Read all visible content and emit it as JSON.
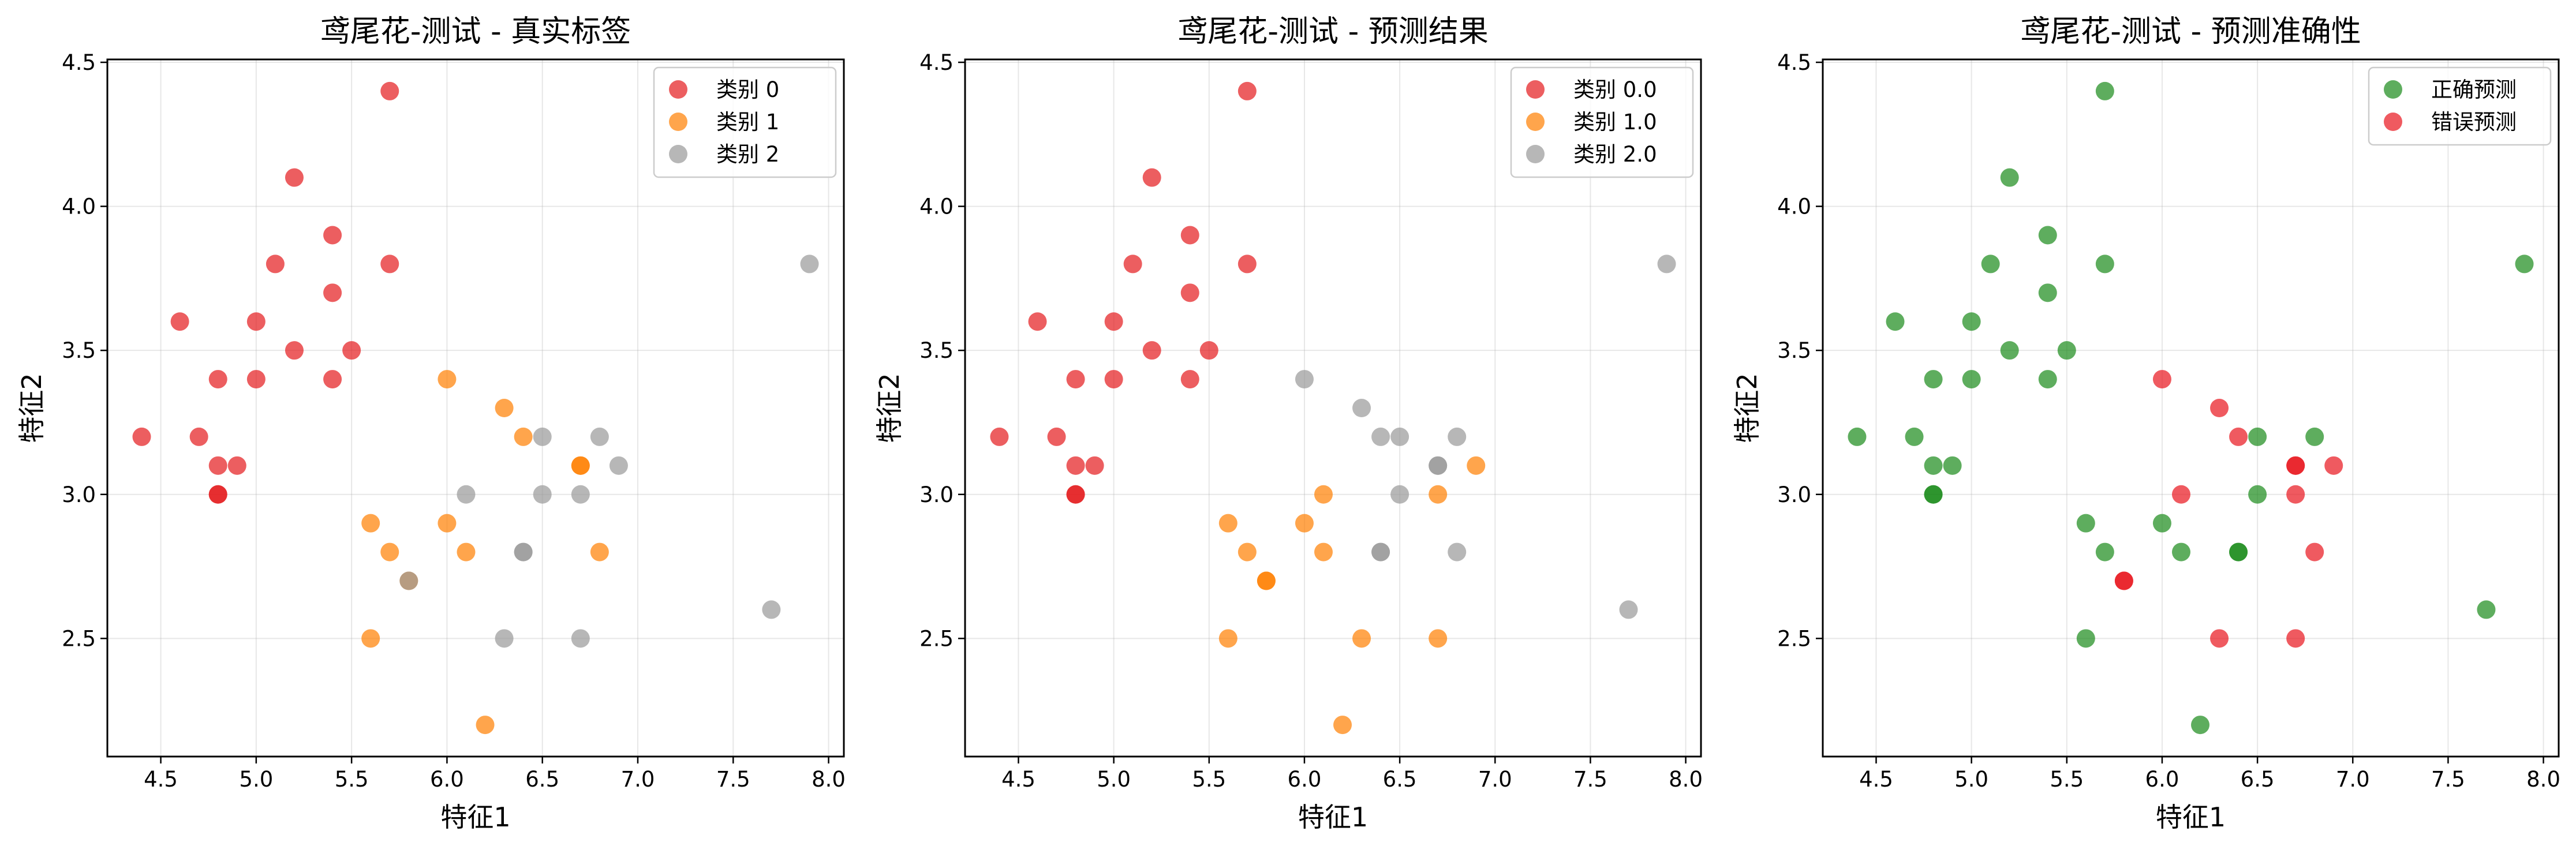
{
  "colors": {
    "class0": "#e41a1c",
    "class1": "#ff7f00",
    "class2": "#999999",
    "correct": "#1a8a1a",
    "wrong": "#e8141c"
  },
  "chart_data": [
    {
      "type": "scatter",
      "title": "鸢尾花-测试 - 真实标签",
      "xlabel": "特征1",
      "ylabel": "特征2",
      "xlim": [
        4.22,
        8.08
      ],
      "ylim": [
        2.09,
        4.51
      ],
      "xticks": [
        "4.5",
        "5.0",
        "5.5",
        "6.0",
        "6.5",
        "7.0",
        "7.5",
        "8.0"
      ],
      "yticks": [
        "2.5",
        "3.0",
        "3.5",
        "4.0",
        "4.5"
      ],
      "grid": true,
      "legend_position": "top-right",
      "series": [
        {
          "name": "类别 0",
          "color_key": "class0",
          "points": [
            [
              4.4,
              3.2
            ],
            [
              4.6,
              3.6
            ],
            [
              4.7,
              3.2
            ],
            [
              4.8,
              3.4
            ],
            [
              4.8,
              3.1
            ],
            [
              4.8,
              3.0
            ],
            [
              4.8,
              3.0
            ],
            [
              4.9,
              3.1
            ],
            [
              5.0,
              3.6
            ],
            [
              5.0,
              3.4
            ],
            [
              5.1,
              3.8
            ],
            [
              5.2,
              4.1
            ],
            [
              5.2,
              3.5
            ],
            [
              5.4,
              3.9
            ],
            [
              5.4,
              3.7
            ],
            [
              5.4,
              3.4
            ],
            [
              5.5,
              3.5
            ],
            [
              5.7,
              4.4
            ],
            [
              5.7,
              3.8
            ]
          ]
        },
        {
          "name": "类别 1",
          "color_key": "class1",
          "points": [
            [
              5.6,
              2.9
            ],
            [
              5.6,
              2.5
            ],
            [
              5.7,
              2.8
            ],
            [
              5.8,
              2.7
            ],
            [
              6.0,
              3.4
            ],
            [
              6.0,
              2.9
            ],
            [
              6.1,
              2.8
            ],
            [
              6.2,
              2.2
            ],
            [
              6.3,
              3.3
            ],
            [
              6.4,
              3.2
            ],
            [
              6.7,
              3.1
            ],
            [
              6.7,
              3.1
            ],
            [
              6.8,
              2.8
            ]
          ]
        },
        {
          "name": "类别 2",
          "color_key": "class2",
          "points": [
            [
              5.8,
              2.7
            ],
            [
              6.1,
              3.0
            ],
            [
              6.3,
              2.5
            ],
            [
              6.4,
              2.8
            ],
            [
              6.4,
              2.8
            ],
            [
              6.5,
              3.2
            ],
            [
              6.5,
              3.0
            ],
            [
              6.7,
              3.0
            ],
            [
              6.7,
              2.5
            ],
            [
              6.8,
              3.2
            ],
            [
              6.9,
              3.1
            ],
            [
              7.7,
              2.6
            ],
            [
              7.9,
              3.8
            ]
          ]
        }
      ]
    },
    {
      "type": "scatter",
      "title": "鸢尾花-测试 - 预测结果",
      "xlabel": "特征1",
      "ylabel": "特征2",
      "xlim": [
        4.22,
        8.08
      ],
      "ylim": [
        2.09,
        4.51
      ],
      "xticks": [
        "4.5",
        "5.0",
        "5.5",
        "6.0",
        "6.5",
        "7.0",
        "7.5",
        "8.0"
      ],
      "yticks": [
        "2.5",
        "3.0",
        "3.5",
        "4.0",
        "4.5"
      ],
      "grid": true,
      "legend_position": "top-right",
      "series": [
        {
          "name": "类别 0.0",
          "color_key": "class0",
          "points": [
            [
              4.4,
              3.2
            ],
            [
              4.6,
              3.6
            ],
            [
              4.7,
              3.2
            ],
            [
              4.8,
              3.4
            ],
            [
              4.8,
              3.1
            ],
            [
              4.8,
              3.0
            ],
            [
              4.8,
              3.0
            ],
            [
              4.9,
              3.1
            ],
            [
              5.0,
              3.6
            ],
            [
              5.0,
              3.4
            ],
            [
              5.1,
              3.8
            ],
            [
              5.2,
              4.1
            ],
            [
              5.2,
              3.5
            ],
            [
              5.4,
              3.9
            ],
            [
              5.4,
              3.7
            ],
            [
              5.4,
              3.4
            ],
            [
              5.5,
              3.5
            ],
            [
              5.7,
              4.4
            ],
            [
              5.7,
              3.8
            ]
          ]
        },
        {
          "name": "类别 1.0",
          "color_key": "class1",
          "points": [
            [
              5.6,
              2.9
            ],
            [
              5.6,
              2.5
            ],
            [
              5.7,
              2.8
            ],
            [
              5.8,
              2.7
            ],
            [
              5.8,
              2.7
            ],
            [
              6.0,
              2.9
            ],
            [
              6.1,
              3.0
            ],
            [
              6.1,
              2.8
            ],
            [
              6.2,
              2.2
            ],
            [
              6.3,
              2.5
            ],
            [
              6.7,
              3.0
            ],
            [
              6.7,
              2.5
            ],
            [
              6.9,
              3.1
            ]
          ]
        },
        {
          "name": "类别 2.0",
          "color_key": "class2",
          "points": [
            [
              6.0,
              3.4
            ],
            [
              6.3,
              3.3
            ],
            [
              6.4,
              3.2
            ],
            [
              6.4,
              2.8
            ],
            [
              6.4,
              2.8
            ],
            [
              6.5,
              3.2
            ],
            [
              6.5,
              3.0
            ],
            [
              6.7,
              3.1
            ],
            [
              6.7,
              3.1
            ],
            [
              6.8,
              3.2
            ],
            [
              6.8,
              2.8
            ],
            [
              7.7,
              2.6
            ],
            [
              7.9,
              3.8
            ]
          ]
        }
      ]
    },
    {
      "type": "scatter",
      "title": "鸢尾花-测试 - 预测准确性",
      "xlabel": "特征1",
      "ylabel": "特征2",
      "xlim": [
        4.22,
        8.08
      ],
      "ylim": [
        2.09,
        4.51
      ],
      "xticks": [
        "4.5",
        "5.0",
        "5.5",
        "6.0",
        "6.5",
        "7.0",
        "7.5",
        "8.0"
      ],
      "yticks": [
        "2.5",
        "3.0",
        "3.5",
        "4.0",
        "4.5"
      ],
      "grid": true,
      "legend_position": "top-right",
      "series": [
        {
          "name": "正确预测",
          "color_key": "correct",
          "points": [
            [
              4.4,
              3.2
            ],
            [
              4.6,
              3.6
            ],
            [
              4.7,
              3.2
            ],
            [
              4.8,
              3.4
            ],
            [
              4.8,
              3.1
            ],
            [
              4.8,
              3.0
            ],
            [
              4.8,
              3.0
            ],
            [
              4.9,
              3.1
            ],
            [
              5.0,
              3.6
            ],
            [
              5.0,
              3.4
            ],
            [
              5.1,
              3.8
            ],
            [
              5.2,
              4.1
            ],
            [
              5.2,
              3.5
            ],
            [
              5.4,
              3.9
            ],
            [
              5.4,
              3.7
            ],
            [
              5.4,
              3.4
            ],
            [
              5.5,
              3.5
            ],
            [
              5.7,
              4.4
            ],
            [
              5.7,
              3.8
            ],
            [
              5.6,
              2.9
            ],
            [
              5.6,
              2.5
            ],
            [
              5.7,
              2.8
            ],
            [
              6.0,
              2.9
            ],
            [
              6.1,
              2.8
            ],
            [
              6.2,
              2.2
            ],
            [
              6.4,
              2.8
            ],
            [
              6.4,
              2.8
            ],
            [
              6.5,
              3.2
            ],
            [
              6.5,
              3.0
            ],
            [
              6.8,
              3.2
            ],
            [
              7.7,
              2.6
            ],
            [
              7.9,
              3.8
            ]
          ]
        },
        {
          "name": "错误预测",
          "color_key": "wrong",
          "points": [
            [
              5.8,
              2.7
            ],
            [
              5.8,
              2.7
            ],
            [
              6.0,
              3.4
            ],
            [
              6.1,
              3.0
            ],
            [
              6.3,
              3.3
            ],
            [
              6.3,
              2.5
            ],
            [
              6.4,
              3.2
            ],
            [
              6.7,
              3.1
            ],
            [
              6.7,
              3.1
            ],
            [
              6.7,
              3.0
            ],
            [
              6.7,
              2.5
            ],
            [
              6.8,
              2.8
            ],
            [
              6.9,
              3.1
            ]
          ]
        }
      ]
    }
  ]
}
